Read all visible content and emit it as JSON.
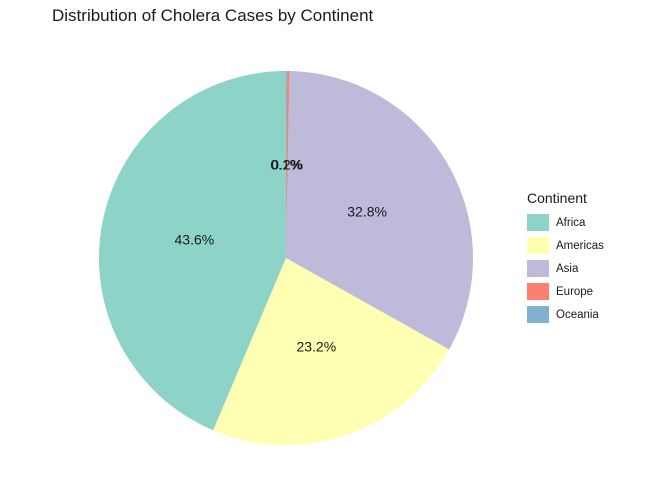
{
  "chart_data": {
    "type": "pie",
    "title": "Distribution of Cholera Cases by Continent",
    "legend_title": "Continent",
    "legend_position": "right",
    "categories": [
      "Africa",
      "Americas",
      "Asia",
      "Europe",
      "Oceania"
    ],
    "values": [
      43.6,
      23.2,
      32.8,
      0.2,
      0.1
    ],
    "labels": [
      "43.6%",
      "23.2%",
      "32.8%",
      "0.2%",
      "0.1%"
    ],
    "colors": [
      "#8DD3C7",
      "#FFFFB3",
      "#BEBADA",
      "#FB8072",
      "#80B1D3"
    ],
    "start_angle_deg": 0,
    "direction": "counterclockwise"
  }
}
